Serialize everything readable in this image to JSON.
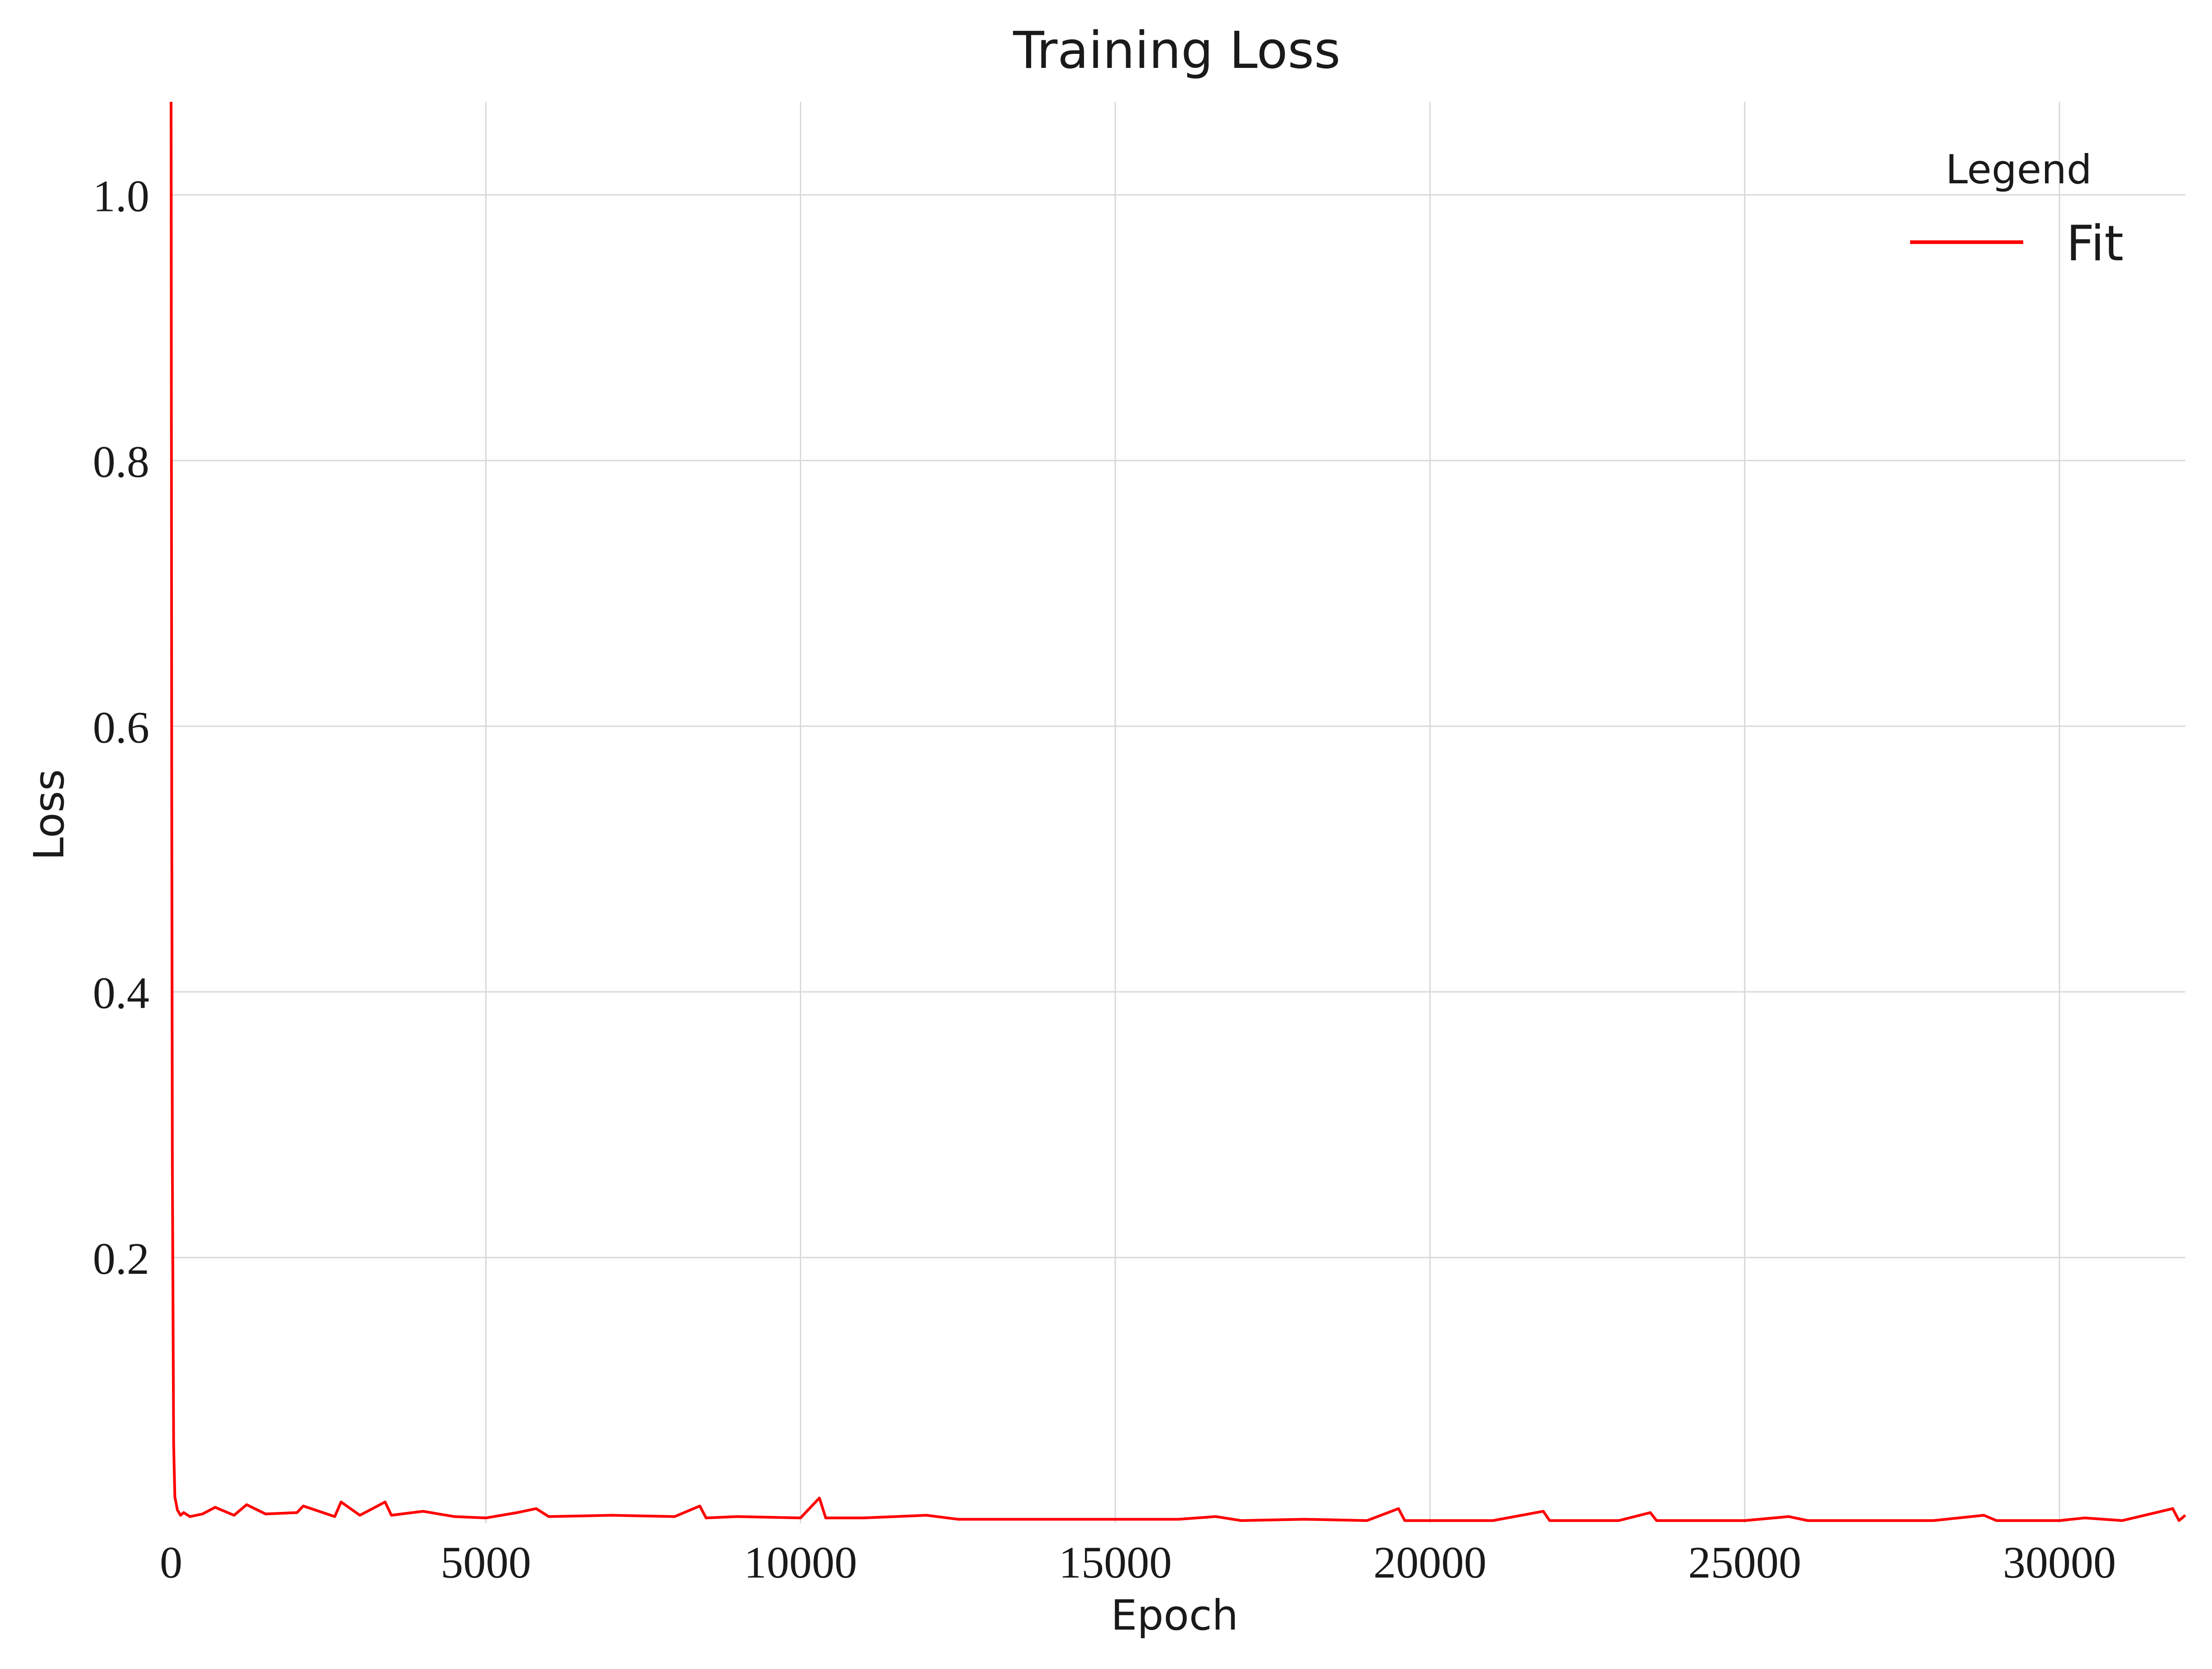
{
  "chart_data": {
    "type": "line",
    "title": "Training Loss",
    "xlabel": "Epoch",
    "ylabel": "Loss",
    "xlim": [
      0,
      32000
    ],
    "ylim": [
      0.0,
      1.07
    ],
    "xticks": [
      0,
      5000,
      10000,
      15000,
      20000,
      25000,
      30000
    ],
    "xtick_labels": [
      "0",
      "5000",
      "10000",
      "15000",
      "20000",
      "25000",
      "30000"
    ],
    "yticks": [
      0.2,
      0.4,
      0.6,
      0.8,
      1.0
    ],
    "ytick_labels": [
      "0.2",
      "0.4",
      "0.6",
      "0.8",
      "1.0"
    ],
    "grid": true,
    "legend": {
      "title": "Legend",
      "position": "top-right"
    },
    "series": [
      {
        "name": "Fit",
        "color": "#ff0000",
        "x": [
          0,
          10,
          20,
          40,
          60,
          100,
          150,
          200,
          300,
          500,
          700,
          1000,
          1200,
          1500,
          2000,
          2100,
          2600,
          2700,
          3000,
          3400,
          3500,
          4000,
          4500,
          5000,
          5500,
          5800,
          6000,
          7000,
          8000,
          8400,
          8500,
          9000,
          10000,
          10300,
          10400,
          11000,
          12000,
          12500,
          13000,
          14000,
          15000,
          16000,
          16600,
          17000,
          18000,
          19000,
          19500,
          19600,
          20000,
          21000,
          21800,
          21900,
          22000,
          23000,
          23500,
          23600,
          24000,
          25000,
          25700,
          26000,
          27000,
          28000,
          28800,
          29000,
          30000,
          30400,
          31000,
          31800,
          31900,
          32000
        ],
        "y": [
          1.07,
          0.55,
          0.27,
          0.06,
          0.02,
          0.01,
          0.006,
          0.008,
          0.005,
          0.007,
          0.012,
          0.006,
          0.014,
          0.007,
          0.008,
          0.013,
          0.005,
          0.016,
          0.006,
          0.016,
          0.006,
          0.009,
          0.005,
          0.004,
          0.008,
          0.011,
          0.005,
          0.006,
          0.005,
          0.013,
          0.004,
          0.005,
          0.004,
          0.019,
          0.004,
          0.004,
          0.006,
          0.003,
          0.003,
          0.003,
          0.003,
          0.003,
          0.005,
          0.002,
          0.003,
          0.002,
          0.011,
          0.002,
          0.002,
          0.002,
          0.009,
          0.002,
          0.002,
          0.002,
          0.008,
          0.002,
          0.002,
          0.002,
          0.005,
          0.002,
          0.002,
          0.002,
          0.006,
          0.002,
          0.002,
          0.004,
          0.002,
          0.011,
          0.002,
          0.006
        ]
      }
    ]
  }
}
